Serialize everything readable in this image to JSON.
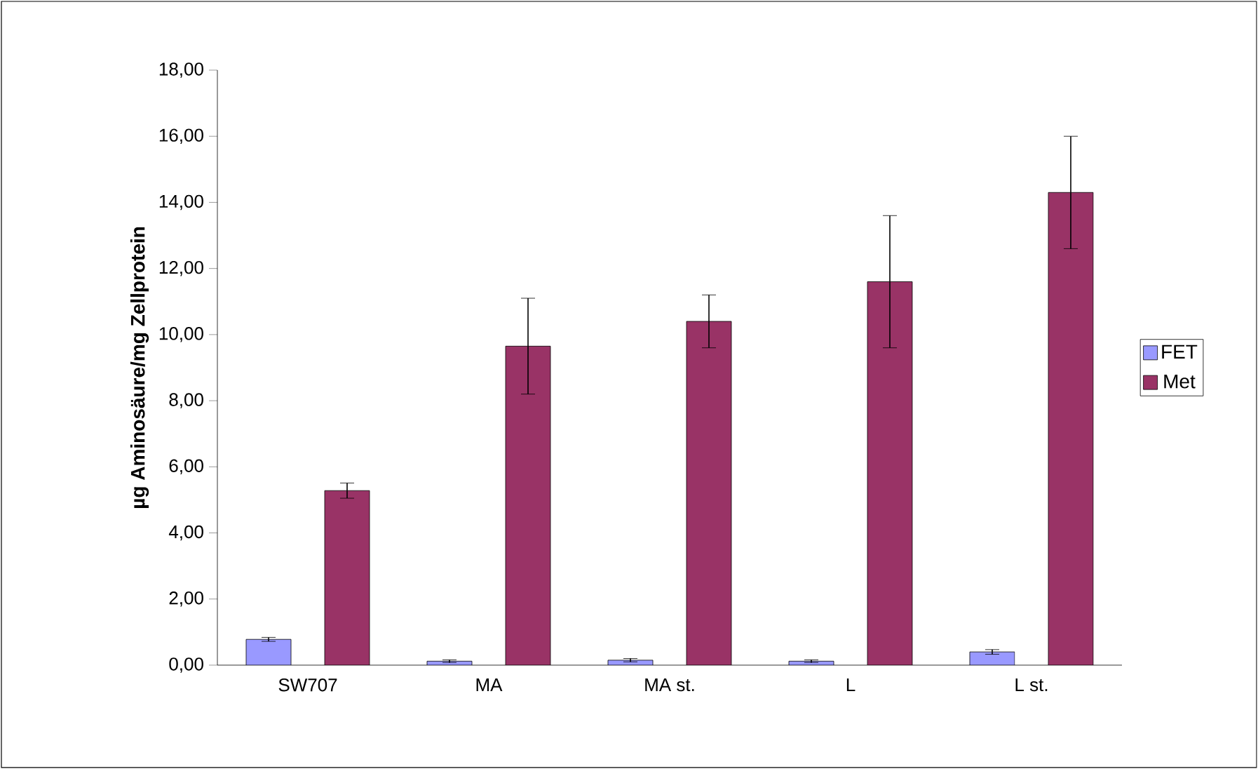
{
  "chart_data": {
    "type": "bar",
    "ylabel": "µg Aminosäure/mg Zellprotein",
    "categories": [
      "SW707",
      "MA",
      "MA st.",
      "L",
      "L st."
    ],
    "series": [
      {
        "name": "FET",
        "color": "#9999ff",
        "values": [
          0.78,
          0.12,
          0.15,
          0.12,
          0.4
        ],
        "errors": [
          0.06,
          0.04,
          0.05,
          0.04,
          0.07
        ]
      },
      {
        "name": "Met",
        "color": "#993366",
        "values": [
          5.28,
          9.65,
          10.4,
          11.6,
          14.3
        ],
        "errors": [
          0.23,
          1.45,
          0.8,
          2.0,
          1.7
        ]
      }
    ],
    "ylim": [
      0,
      18
    ],
    "yticks": [
      {
        "value": 0,
        "label": "0,00"
      },
      {
        "value": 2,
        "label": "2,00"
      },
      {
        "value": 4,
        "label": "4,00"
      },
      {
        "value": 6,
        "label": "6,00"
      },
      {
        "value": 8,
        "label": "8,00"
      },
      {
        "value": 10,
        "label": "10,00"
      },
      {
        "value": 12,
        "label": "12,00"
      },
      {
        "value": 14,
        "label": "14,00"
      },
      {
        "value": 16,
        "label": "16,00"
      },
      {
        "value": 18,
        "label": "18,00"
      }
    ],
    "grid": false,
    "legend": "right"
  }
}
